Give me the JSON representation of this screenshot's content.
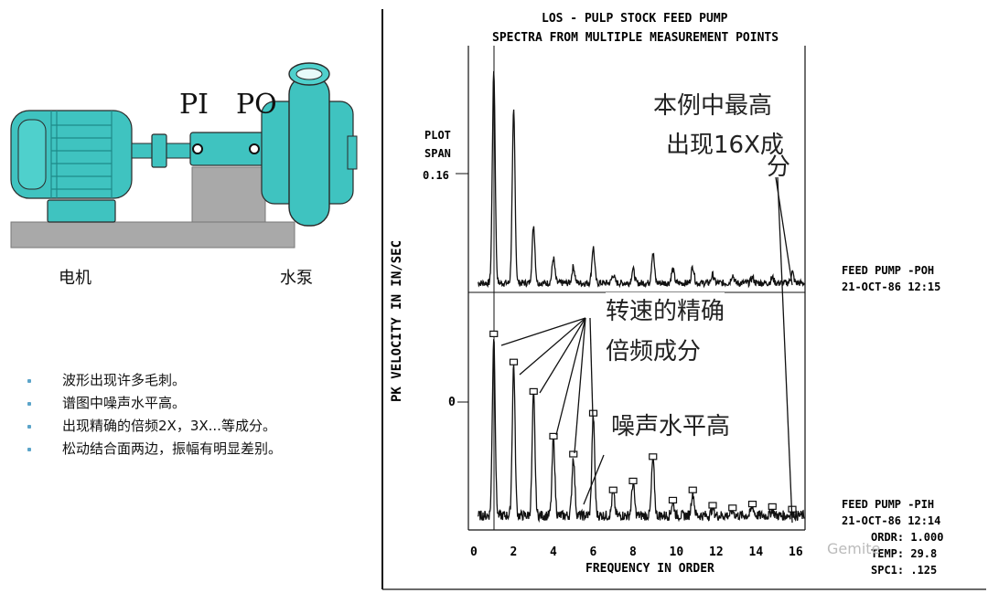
{
  "machine": {
    "pi_label": "PI",
    "po_label": "PO",
    "motor_label": "电机",
    "pump_label": "水泵",
    "colors": {
      "body": "#3fc3c0",
      "body_dark": "#1f8a89",
      "base": "#a9a9a9",
      "outline": "#2a2a2a"
    }
  },
  "bullets": [
    "波形出现许多毛刺。",
    "谱图中噪声水平高。",
    "出现精确的倍频2X，3X...等成分。",
    "松动结合面两边，振幅有明显差别。"
  ],
  "spectrum": {
    "title_line1": "LOS  - PULP STOCK FEED PUMP",
    "title_line2": "SPECTRA FROM MULTIPLE MEASUREMENT POINTS",
    "plot_span_label": "PLOT",
    "plot_span_label2": "SPAN",
    "plot_span_value": "0.16",
    "zero_label": "0",
    "ylabel": "PK VELOCITY IN IN/SEC",
    "xlabel": "FREQUENCY IN ORDER",
    "x_ticks": [
      "0",
      "2",
      "4",
      "6",
      "8",
      "10",
      "12",
      "14",
      "16"
    ],
    "upper_info": {
      "line1": "FEED PUMP -POH",
      "line2": "21-OCT-86   12:15"
    },
    "lower_info": {
      "line1": "FEED PUMP -PIH",
      "line2": "21-OCT-86   12:14",
      "line3": "ORDR:   1.000",
      "line4": "TEMP:   29.8",
      "line5": "SPC1:    .125"
    },
    "annotations": {
      "highest_16x_line1": "本例中最高",
      "highest_16x_line2": "出现16X成",
      "highest_16x_line3": "分",
      "exact_harmonics_line1": "转速的精确",
      "exact_harmonics_line2": "倍频成分",
      "noise_high": "噪声水平高"
    }
  },
  "chart_data": {
    "type": "line",
    "xlabel": "FREQUENCY IN ORDER",
    "ylabel": "PK VELOCITY IN IN/SEC",
    "xlim": [
      0,
      17
    ],
    "series": [
      {
        "name": "FEED PUMP -POH",
        "x": [
          1,
          2,
          3,
          4,
          5,
          6,
          7,
          8,
          9,
          10,
          11,
          12,
          13,
          14,
          15,
          16
        ],
        "values": [
          0.155,
          0.125,
          0.042,
          0.018,
          0.012,
          0.026,
          0.006,
          0.01,
          0.022,
          0.01,
          0.012,
          0.006,
          0.006,
          0.004,
          0.004,
          0.008
        ]
      },
      {
        "name": "FEED PUMP -PIH",
        "x": [
          1,
          2,
          3,
          4,
          5,
          6,
          7,
          8,
          9,
          10,
          11,
          12,
          13,
          14,
          15,
          16
        ],
        "values": [
          0.14,
          0.118,
          0.095,
          0.06,
          0.046,
          0.078,
          0.018,
          0.025,
          0.044,
          0.01,
          0.018,
          0.006,
          0.004,
          0.007,
          0.005,
          0.003
        ]
      }
    ]
  },
  "watermark": "Gemite"
}
